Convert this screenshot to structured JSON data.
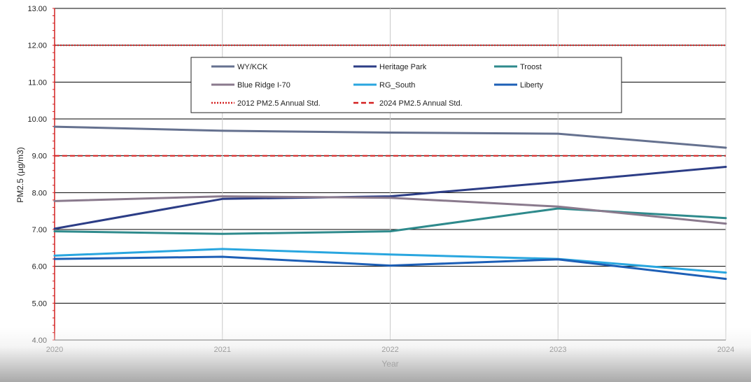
{
  "chart_data": {
    "type": "line",
    "xlabel": "Year",
    "ylabel": "PM2.5 (µg/m3)",
    "x": [
      "2020",
      "2021",
      "2022",
      "2023",
      "2024"
    ],
    "ylim": [
      4.0,
      13.0
    ],
    "yticks": [
      "4.00",
      "5.00",
      "6.00",
      "7.00",
      "8.00",
      "9.00",
      "10.00",
      "11.00",
      "12.00",
      "13.00"
    ],
    "grid": "on",
    "legend_position": "top-center",
    "series": [
      {
        "name": "WY/KCK",
        "color": "#65718f",
        "style": "solid",
        "values": [
          9.79,
          9.68,
          9.63,
          9.6,
          9.22
        ]
      },
      {
        "name": "Heritage Park",
        "color": "#2c3d86",
        "style": "solid",
        "values": [
          7.02,
          7.83,
          7.9,
          8.29,
          8.7
        ]
      },
      {
        "name": "Troost",
        "color": "#2e8a8c",
        "style": "solid",
        "values": [
          6.95,
          6.88,
          6.95,
          7.57,
          7.31
        ]
      },
      {
        "name": "Blue Ridge I-70",
        "color": "#8a7a8d",
        "style": "solid",
        "values": [
          7.77,
          7.9,
          7.86,
          7.62,
          7.16
        ]
      },
      {
        "name": "RG_South",
        "color": "#29a6df",
        "style": "solid",
        "values": [
          6.29,
          6.47,
          6.32,
          6.2,
          5.83
        ]
      },
      {
        "name": "Liberty",
        "color": "#1d5fb6",
        "style": "solid",
        "values": [
          6.2,
          6.26,
          6.02,
          6.19,
          5.66
        ]
      },
      {
        "name": "2012 PM2.5 Annual Std.",
        "color": "#d42020",
        "style": "dotted",
        "values": [
          12.0,
          12.0,
          12.0,
          12.0,
          12.0
        ]
      },
      {
        "name": "2024 PM2.5 Annual Std.",
        "color": "#d42020",
        "style": "dashed",
        "values": [
          9.0,
          9.0,
          9.0,
          9.0,
          9.0
        ]
      }
    ]
  }
}
